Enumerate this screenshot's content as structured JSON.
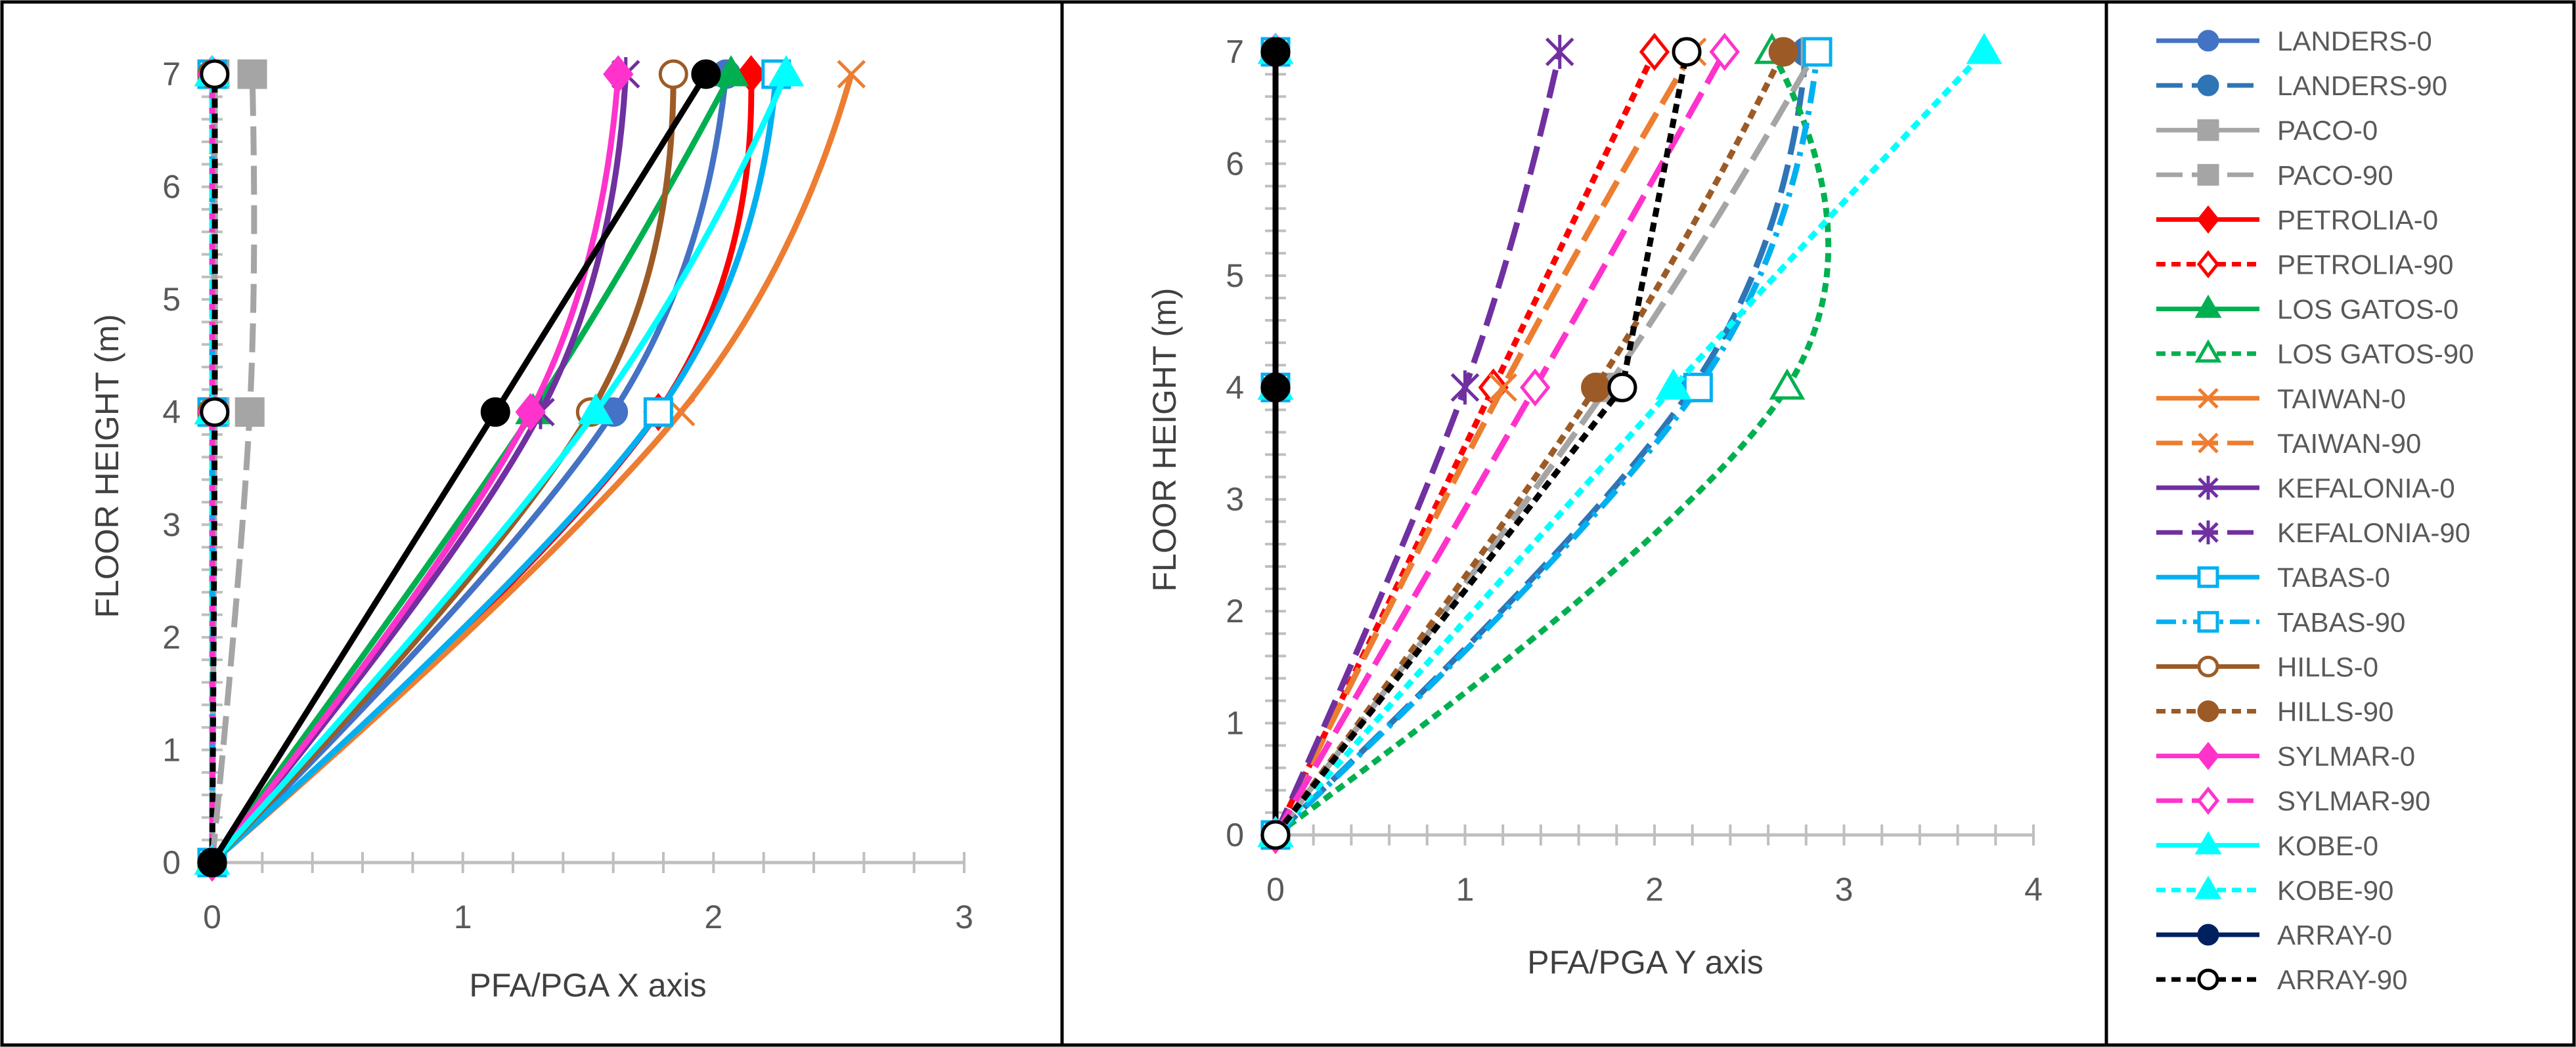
{
  "figure": {
    "panel_left_xlabel": "PFA/PGA X axis",
    "panel_right_xlabel": "PFA/PGA Y axis",
    "ylabel": "FLOOR HEIGHT (m)"
  },
  "chart_data": [
    {
      "type": "line",
      "title": "",
      "xlabel": "PFA/PGA X axis",
      "ylabel": "FLOOR HEIGHT (m)",
      "xlim": [
        0,
        3
      ],
      "ylim": [
        0,
        7
      ],
      "xticks": [
        "0",
        "1",
        "2",
        "3"
      ],
      "yticks": [
        "0",
        "1",
        "2",
        "3",
        "4",
        "5",
        "6",
        "7"
      ],
      "grid": false,
      "series": [
        {
          "name": "LANDERS-0",
          "x": [
            0,
            1.6,
            2.05
          ],
          "y": [
            0,
            4,
            7
          ]
        },
        {
          "name": "LANDERS-90",
          "x": [
            0,
            0.01,
            0.01
          ],
          "y": [
            0,
            4,
            7
          ]
        },
        {
          "name": "PACO-0",
          "x": [
            0,
            0.01,
            0.01
          ],
          "y": [
            0,
            4,
            7
          ]
        },
        {
          "name": "PACO-90",
          "x": [
            0,
            0.15,
            0.16
          ],
          "y": [
            0,
            4,
            7
          ]
        },
        {
          "name": "PETROLIA-0",
          "x": [
            0,
            1.78,
            2.15
          ],
          "y": [
            0,
            4,
            7
          ]
        },
        {
          "name": "PETROLIA-90",
          "x": [
            0,
            0.0,
            0.0
          ],
          "y": [
            0,
            4,
            7
          ]
        },
        {
          "name": "LOS GATOS-0",
          "x": [
            0,
            1.28,
            2.07
          ],
          "y": [
            0,
            4,
            7
          ]
        },
        {
          "name": "LOS GATOS-90",
          "x": [
            0,
            0.0,
            0.0
          ],
          "y": [
            0,
            4,
            7
          ]
        },
        {
          "name": "TAIWAN-0",
          "x": [
            0,
            1.87,
            2.55
          ],
          "y": [
            0,
            4,
            7
          ]
        },
        {
          "name": "TAIWAN-90",
          "x": [
            0,
            0.0,
            0.0
          ],
          "y": [
            0,
            4,
            7
          ]
        },
        {
          "name": "KEFALONIA-0",
          "x": [
            0,
            1.31,
            1.65
          ],
          "y": [
            0,
            4,
            7
          ]
        },
        {
          "name": "KEFALONIA-90",
          "x": [
            0,
            0.0,
            0.0
          ],
          "y": [
            0,
            4,
            7
          ]
        },
        {
          "name": "TABAS-0",
          "x": [
            0,
            1.78,
            2.25
          ],
          "y": [
            0,
            4,
            7
          ]
        },
        {
          "name": "TABAS-90",
          "x": [
            0,
            0.0,
            0.0
          ],
          "y": [
            0,
            4,
            7
          ]
        },
        {
          "name": "HILLS-0",
          "x": [
            0,
            1.51,
            1.84
          ],
          "y": [
            0,
            4,
            7
          ]
        },
        {
          "name": "HILLS-90",
          "x": [
            0,
            0.0,
            0.0
          ],
          "y": [
            0,
            4,
            7
          ]
        },
        {
          "name": "SYLMAR-0",
          "x": [
            0,
            1.27,
            1.62
          ],
          "y": [
            0,
            4,
            7
          ]
        },
        {
          "name": "SYLMAR-90",
          "x": [
            0,
            0.0,
            0.0
          ],
          "y": [
            0,
            4,
            7
          ]
        },
        {
          "name": "KOBE-0",
          "x": [
            0,
            1.53,
            2.29
          ],
          "y": [
            0,
            4,
            7
          ]
        },
        {
          "name": "KOBE-90",
          "x": [
            0,
            0.0,
            0.0
          ],
          "y": [
            0,
            4,
            7
          ]
        },
        {
          "name": "ARRAY-0",
          "x": [
            0,
            1.13,
            1.97
          ],
          "y": [
            0,
            4,
            7
          ]
        },
        {
          "name": "ARRAY-90",
          "x": [
            0,
            0.01,
            0.01
          ],
          "y": [
            0,
            4,
            7
          ]
        }
      ]
    },
    {
      "type": "line",
      "title": "",
      "xlabel": "PFA/PGA Y axis",
      "ylabel": "FLOOR HEIGHT (m)",
      "xlim": [
        0,
        4
      ],
      "ylim": [
        0,
        7
      ],
      "xticks": [
        "0",
        "1",
        "2",
        "3",
        "4"
      ],
      "yticks": [
        "0",
        "1",
        "2",
        "3",
        "4",
        "5",
        "6",
        "7"
      ],
      "grid": false,
      "series": [
        {
          "name": "LANDERS-0",
          "x": [
            0,
            0.0,
            0.0
          ],
          "y": [
            0,
            4,
            7
          ]
        },
        {
          "name": "LANDERS-90",
          "x": [
            0,
            2.2,
            2.8
          ],
          "y": [
            0,
            4,
            7
          ]
        },
        {
          "name": "PACO-0",
          "x": [
            0,
            0.0,
            0.0
          ],
          "y": [
            0,
            4,
            7
          ]
        },
        {
          "name": "PACO-90",
          "x": [
            0,
            1.75,
            2.85
          ],
          "y": [
            0,
            4,
            7
          ]
        },
        {
          "name": "PETROLIA-0",
          "x": [
            0,
            0.0,
            0.0
          ],
          "y": [
            0,
            4,
            7
          ]
        },
        {
          "name": "PETROLIA-90",
          "x": [
            0,
            1.15,
            2.0
          ],
          "y": [
            0,
            4,
            7
          ]
        },
        {
          "name": "LOS GATOS-0",
          "x": [
            0,
            0.0,
            0.0
          ],
          "y": [
            0,
            4,
            7
          ]
        },
        {
          "name": "LOS GATOS-90",
          "x": [
            0,
            2.7,
            2.62
          ],
          "y": [
            0,
            4,
            7
          ]
        },
        {
          "name": "TAIWAN-0",
          "x": [
            0,
            0.0,
            0.0
          ],
          "y": [
            0,
            4,
            7
          ]
        },
        {
          "name": "TAIWAN-90",
          "x": [
            0,
            1.2,
            2.2
          ],
          "y": [
            0,
            4,
            7
          ]
        },
        {
          "name": "KEFALONIA-0",
          "x": [
            0,
            0.0,
            0.0
          ],
          "y": [
            0,
            4,
            7
          ]
        },
        {
          "name": "KEFALONIA-90",
          "x": [
            0,
            1.0,
            1.5
          ],
          "y": [
            0,
            4,
            7
          ]
        },
        {
          "name": "TABAS-0",
          "x": [
            0,
            0.0,
            0.0
          ],
          "y": [
            0,
            4,
            7
          ]
        },
        {
          "name": "TABAS-90",
          "x": [
            0,
            2.23,
            2.86
          ],
          "y": [
            0,
            4,
            7
          ]
        },
        {
          "name": "HILLS-0",
          "x": [
            0,
            0.0,
            0.0
          ],
          "y": [
            0,
            4,
            7
          ]
        },
        {
          "name": "HILLS-90",
          "x": [
            0,
            1.69,
            2.68
          ],
          "y": [
            0,
            4,
            7
          ]
        },
        {
          "name": "SYLMAR-0",
          "x": [
            0,
            0.0,
            0.0
          ],
          "y": [
            0,
            4,
            7
          ]
        },
        {
          "name": "SYLMAR-90",
          "x": [
            0,
            1.37,
            2.37
          ],
          "y": [
            0,
            4,
            7
          ]
        },
        {
          "name": "KOBE-0",
          "x": [
            0,
            0.0,
            0.0
          ],
          "y": [
            0,
            4,
            7
          ]
        },
        {
          "name": "KOBE-90",
          "x": [
            0,
            2.1,
            3.74
          ],
          "y": [
            0,
            4,
            7
          ]
        },
        {
          "name": "ARRAY-0",
          "x": [
            0,
            0.0,
            0.0
          ],
          "y": [
            0,
            4,
            7
          ]
        },
        {
          "name": "ARRAY-90",
          "x": [
            0,
            1.83,
            2.17
          ],
          "y": [
            0,
            4,
            7
          ]
        }
      ]
    }
  ],
  "legend": {
    "placement": "right",
    "items": [
      {
        "label": "LANDERS-0",
        "color": "#4472C4",
        "dash": "solid",
        "marker": "circle-filled"
      },
      {
        "label": "LANDERS-90",
        "color": "#2E75B6",
        "dash": "longdash",
        "marker": "circle-filled"
      },
      {
        "label": "PACO-0",
        "color": "#A5A5A5",
        "dash": "solid",
        "marker": "square-filled"
      },
      {
        "label": "PACO-90",
        "color": "#A5A5A5",
        "dash": "longdash",
        "marker": "square-filled"
      },
      {
        "label": "PETROLIA-0",
        "color": "#FF0000",
        "dash": "solid",
        "marker": "diamond-filled"
      },
      {
        "label": "PETROLIA-90",
        "color": "#FF0000",
        "dash": "dash",
        "marker": "diamond-open"
      },
      {
        "label": "LOS GATOS-0",
        "color": "#00B050",
        "dash": "solid",
        "marker": "triangle-filled"
      },
      {
        "label": "LOS GATOS-90",
        "color": "#00B050",
        "dash": "dash",
        "marker": "triangle-open"
      },
      {
        "label": "TAIWAN-0",
        "color": "#ED7D31",
        "dash": "solid",
        "marker": "x"
      },
      {
        "label": "TAIWAN-90",
        "color": "#ED7D31",
        "dash": "longdash",
        "marker": "x"
      },
      {
        "label": "KEFALONIA-0",
        "color": "#7030A0",
        "dash": "solid",
        "marker": "star"
      },
      {
        "label": "KEFALONIA-90",
        "color": "#7030A0",
        "dash": "longdash",
        "marker": "star"
      },
      {
        "label": "TABAS-0",
        "color": "#00B0F0",
        "dash": "solid",
        "marker": "square-open"
      },
      {
        "label": "TABAS-90",
        "color": "#00B0F0",
        "dash": "dashdot",
        "marker": "square-open"
      },
      {
        "label": "HILLS-0",
        "color": "#9C5B26",
        "dash": "solid",
        "marker": "circle-open"
      },
      {
        "label": "HILLS-90",
        "color": "#9C5B26",
        "dash": "dash",
        "marker": "circle-filled"
      },
      {
        "label": "SYLMAR-0",
        "color": "#FF33CC",
        "dash": "solid",
        "marker": "diamond-filled"
      },
      {
        "label": "SYLMAR-90",
        "color": "#FF33CC",
        "dash": "longdash",
        "marker": "diamond-open"
      },
      {
        "label": "KOBE-0",
        "color": "#00FFFF",
        "dash": "solid",
        "marker": "triangle-filled"
      },
      {
        "label": "KOBE-90",
        "color": "#00FFFF",
        "dash": "dash",
        "marker": "triangle-filled"
      },
      {
        "label": "ARRAY-0",
        "color": "#002060",
        "dash": "solid",
        "marker": "circle-filled"
      },
      {
        "label": "ARRAY-90",
        "color": "#000000",
        "dash": "dash",
        "marker": "circle-open"
      }
    ]
  },
  "colors": {
    "axis": "#BFBFBF",
    "tick_label": "#595959",
    "border": "#000000",
    "array0_plot_line": "#000000"
  }
}
